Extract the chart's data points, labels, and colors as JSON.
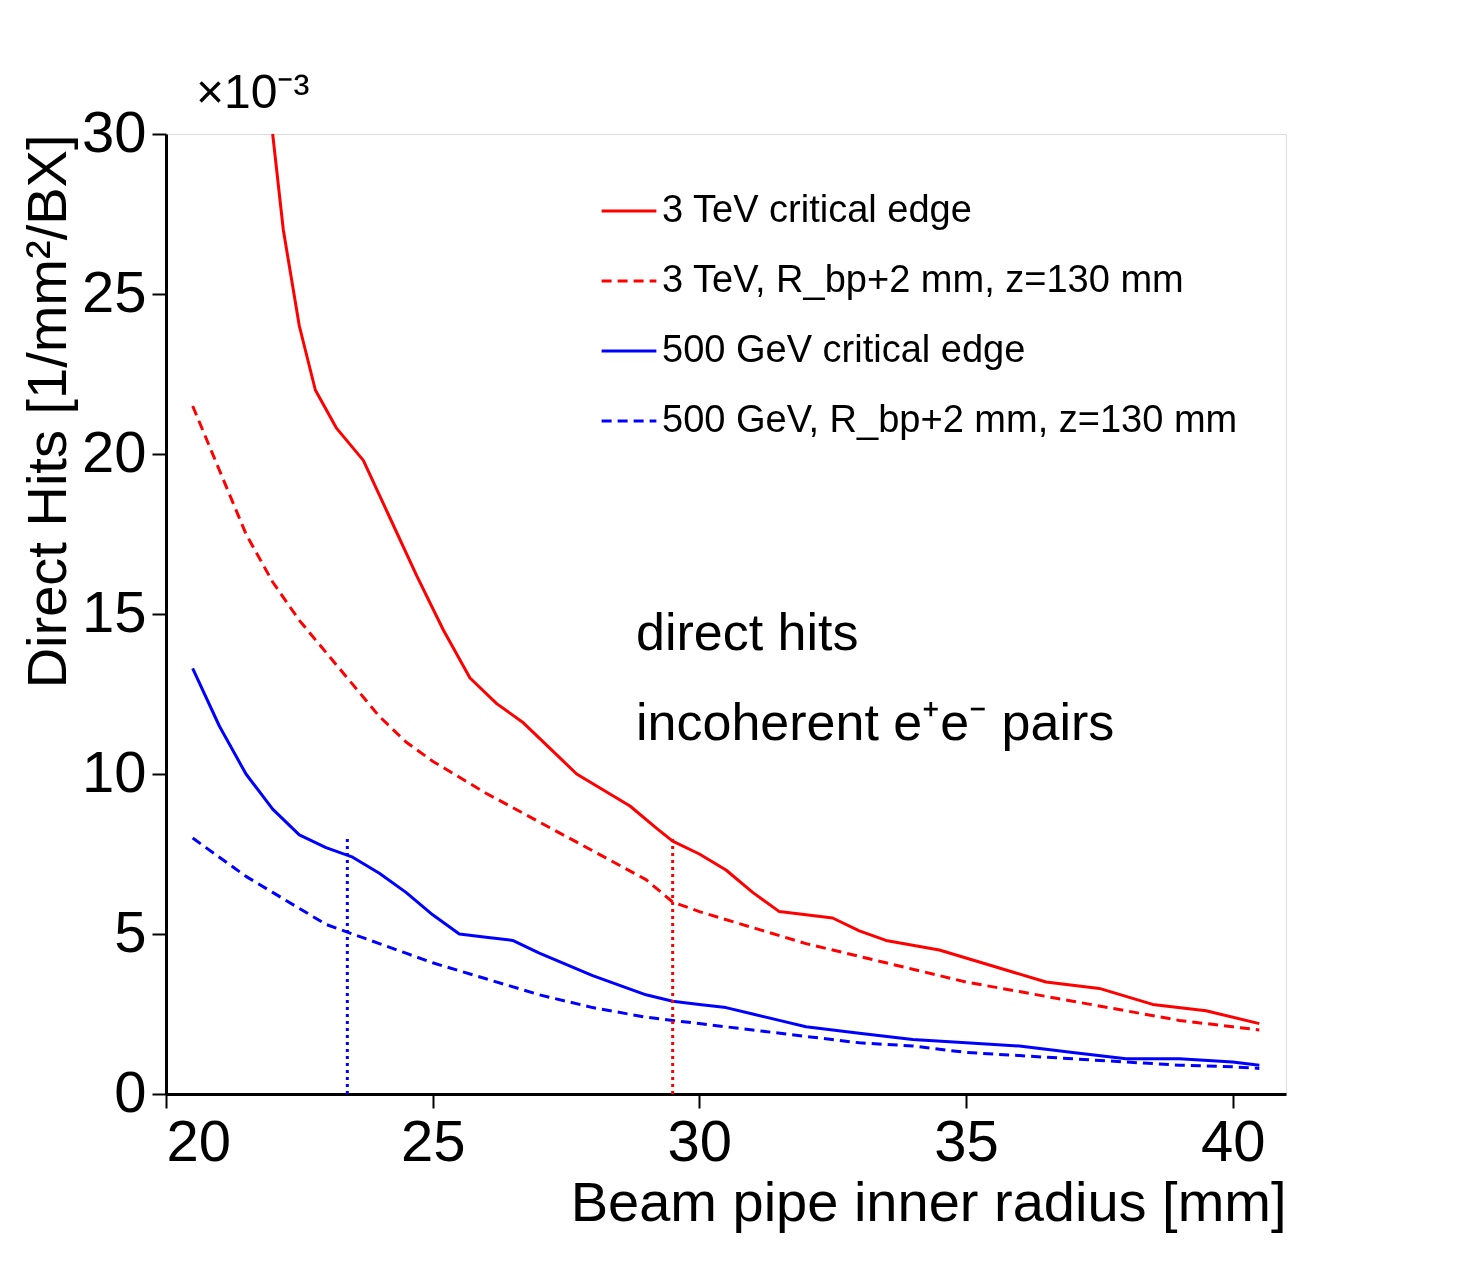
{
  "chart_data": {
    "type": "line",
    "xlabel": "Beam pipe inner radius [mm]",
    "ylabel": "Direct Hits [1/mm²/BX]",
    "xlim": [
      20,
      41
    ],
    "xticks": [
      20,
      25,
      30,
      35,
      40
    ],
    "ylim": [
      0,
      30
    ],
    "yticks": [
      0,
      5,
      10,
      15,
      20,
      25,
      30
    ],
    "grid": false,
    "legend": "top right",
    "marker": "none",
    "annotations": [
      "×10⁻³",
      "direct hits",
      "incoherent e⁺e⁻ pairs"
    ],
    "series": [
      {
        "name": "3 TeV critical edge",
        "color": "#ff0000",
        "line_style": "solid",
        "x": [
          22.0,
          22.2,
          22.5,
          22.8,
          23.2,
          23.7,
          24.2,
          24.7,
          25.2,
          25.7,
          26.2,
          26.7,
          27.2,
          27.7,
          28.2,
          28.7,
          29.2,
          29.5,
          30.0,
          30.5,
          31.0,
          31.5,
          32.0,
          32.5,
          33.0,
          33.5,
          34.5,
          35.5,
          36.5,
          37.5,
          38.5,
          39.5,
          40.5
        ],
        "values": [
          30,
          27,
          24,
          22,
          20.8,
          19.8,
          18,
          16.2,
          14.5,
          13,
          12.2,
          11.6,
          10.8,
          10,
          9.5,
          9,
          8.3,
          7.9,
          7.5,
          7.0,
          6.3,
          5.7,
          5.6,
          5.5,
          5.1,
          4.8,
          4.5,
          4.0,
          3.5,
          3.3,
          2.8,
          2.6,
          2.2
        ]
      },
      {
        "name": "3 TeV, R_bp+2 mm, z=130 mm",
        "color": "#ff0000",
        "line_style": "dashed",
        "x": [
          20.5,
          21,
          21.5,
          22,
          22.5,
          23,
          23.5,
          24,
          24.5,
          25,
          26,
          27,
          28,
          29,
          29.5,
          30,
          31,
          32,
          33,
          34,
          35,
          36,
          37,
          38,
          39,
          40,
          40.5
        ],
        "values": [
          21.5,
          19.5,
          17.5,
          16,
          14.8,
          13.8,
          12.8,
          11.8,
          11,
          10.4,
          9.4,
          8.5,
          7.6,
          6.7,
          6.0,
          5.7,
          5.2,
          4.7,
          4.3,
          3.9,
          3.5,
          3.2,
          2.9,
          2.6,
          2.3,
          2.1,
          2.0
        ]
      },
      {
        "name": "500 GeV critical edge",
        "color": "#0000ff",
        "line_style": "solid",
        "x": [
          20.5,
          21,
          21.5,
          22,
          22.5,
          23,
          23.5,
          24,
          24.5,
          25,
          25.5,
          26,
          26.5,
          27,
          28,
          29,
          29.5,
          30,
          30.5,
          31,
          31.5,
          32,
          33,
          34,
          35,
          36,
          37,
          38,
          39,
          40,
          40.5
        ],
        "values": [
          13.3,
          11.5,
          10,
          8.9,
          8.1,
          7.7,
          7.4,
          6.9,
          6.3,
          5.6,
          5.0,
          4.9,
          4.8,
          4.4,
          3.7,
          3.1,
          2.9,
          2.8,
          2.7,
          2.5,
          2.3,
          2.1,
          1.9,
          1.7,
          1.6,
          1.5,
          1.3,
          1.1,
          1.1,
          1.0,
          0.9
        ]
      },
      {
        "name": "500 GeV, R_bp+2 mm, z=130 mm",
        "color": "#0000ff",
        "line_style": "dashed",
        "x": [
          20.5,
          21,
          21.5,
          22,
          22.5,
          23,
          23.5,
          24,
          24.5,
          25,
          26,
          27,
          28,
          29,
          29.5,
          30,
          31,
          32,
          33,
          34,
          35,
          36,
          37,
          38,
          39,
          40,
          40.5
        ],
        "values": [
          8.0,
          7.4,
          6.8,
          6.3,
          5.8,
          5.3,
          5.0,
          4.7,
          4.4,
          4.1,
          3.6,
          3.1,
          2.7,
          2.4,
          2.3,
          2.2,
          2.0,
          1.8,
          1.6,
          1.5,
          1.3,
          1.2,
          1.1,
          1.0,
          0.9,
          0.85,
          0.8
        ]
      },
      {
        "color": "#0000ff",
        "line_style": "dotted",
        "x": [
          23.4,
          23.4
        ],
        "values": [
          0,
          8
        ]
      },
      {
        "color": "#ff0000",
        "line_style": "dotted",
        "x": [
          29.5,
          29.5
        ],
        "values": [
          0,
          8
        ]
      }
    ]
  }
}
